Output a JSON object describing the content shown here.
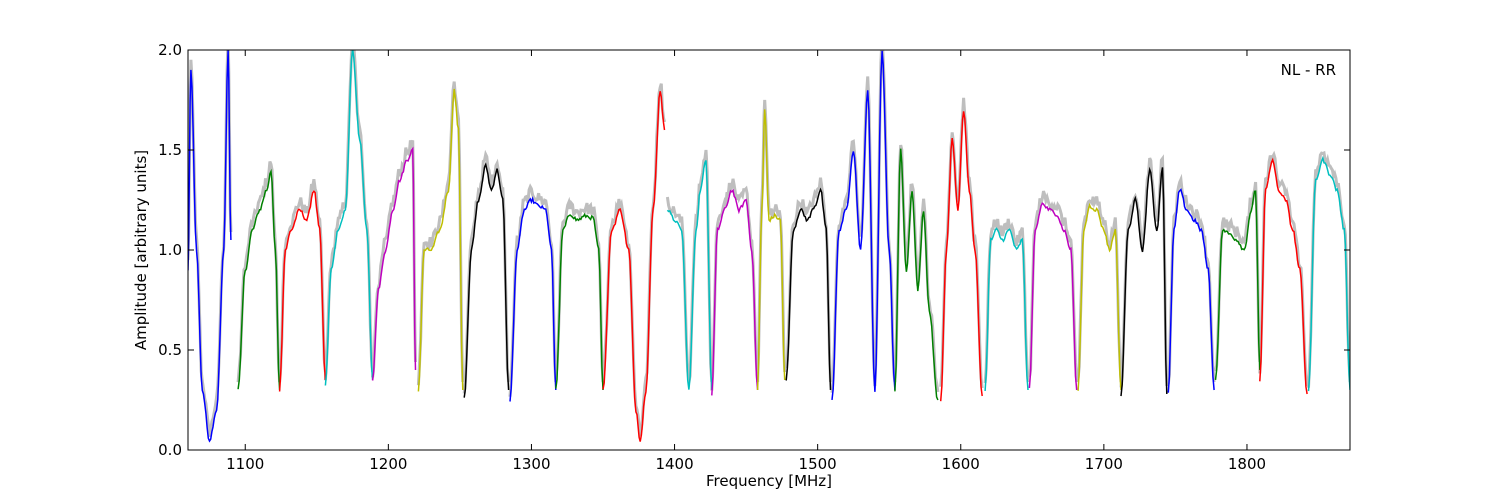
{
  "chart_data": {
    "type": "line",
    "title": "",
    "xlabel": "Frequency [MHz]",
    "ylabel": "Amplitude [arbitrary units]",
    "xlim": [
      1060,
      1872
    ],
    "ylim": [
      0.0,
      2.0
    ],
    "xticks": [
      1100,
      1200,
      1300,
      1400,
      1500,
      1600,
      1700,
      1800
    ],
    "yticks": [
      0.0,
      0.5,
      1.0,
      1.5,
      2.0
    ],
    "xtick_labels": [
      "1100",
      "1200",
      "1300",
      "1400",
      "1500",
      "1600",
      "1700",
      "1800"
    ],
    "ytick_labels": [
      "0.0",
      "0.5",
      "1.0",
      "1.5",
      "2.0"
    ],
    "annotation": "NL - RR",
    "grid": false,
    "background_color": "#bebebe",
    "series": [
      {
        "color": "#0000ff",
        "x": [
          1060,
          1062,
          1066,
          1070,
          1075,
          1080,
          1085,
          1088,
          1090
        ],
        "y": [
          0.9,
          1.9,
          1.0,
          0.3,
          0.05,
          0.2,
          1.0,
          2.0,
          1.05
        ]
      },
      {
        "color": "#008000",
        "x": [
          1095,
          1100,
          1105,
          1110,
          1115,
          1118,
          1121,
          1124
        ],
        "y": [
          0.3,
          0.9,
          1.1,
          1.2,
          1.3,
          1.4,
          1.0,
          0.3
        ]
      },
      {
        "color": "#ff0000",
        "x": [
          1124,
          1128,
          1132,
          1138,
          1143,
          1148,
          1152,
          1156
        ],
        "y": [
          0.3,
          1.0,
          1.1,
          1.2,
          1.15,
          1.3,
          1.1,
          0.35
        ]
      },
      {
        "color": "#00bfbf",
        "x": [
          1156,
          1160,
          1165,
          1170,
          1175,
          1180,
          1185,
          1189
        ],
        "y": [
          0.32,
          0.9,
          1.1,
          1.2,
          2.0,
          1.55,
          1.1,
          0.35
        ]
      },
      {
        "color": "#bf00bf",
        "x": [
          1189,
          1193,
          1198,
          1203,
          1208,
          1213,
          1217,
          1219
        ],
        "y": [
          0.35,
          0.8,
          1.0,
          1.2,
          1.35,
          1.45,
          1.5,
          0.4
        ]
      },
      {
        "color": "#bfbf00",
        "x": [
          1221,
          1225,
          1230,
          1236,
          1242,
          1246,
          1249,
          1252
        ],
        "y": [
          0.3,
          1.0,
          1.0,
          1.1,
          1.3,
          1.8,
          1.6,
          0.3
        ]
      },
      {
        "color": "#000000",
        "x": [
          1253,
          1258,
          1263,
          1268,
          1272,
          1276,
          1280,
          1284
        ],
        "y": [
          0.26,
          1.0,
          1.25,
          1.42,
          1.3,
          1.4,
          1.25,
          0.3
        ]
      },
      {
        "color": "#0000ff",
        "x": [
          1285,
          1290,
          1295,
          1300,
          1305,
          1310,
          1314,
          1317
        ],
        "y": [
          0.25,
          1.0,
          1.2,
          1.25,
          1.22,
          1.2,
          1.0,
          0.3
        ]
      },
      {
        "color": "#008000",
        "x": [
          1317,
          1322,
          1327,
          1332,
          1338,
          1343,
          1347,
          1350
        ],
        "y": [
          0.3,
          1.1,
          1.18,
          1.15,
          1.17,
          1.16,
          1.0,
          0.3
        ]
      },
      {
        "color": "#ff0000",
        "x": [
          1350,
          1356,
          1362,
          1368,
          1373,
          1376,
          1380,
          1385,
          1390,
          1393
        ],
        "y": [
          0.3,
          1.1,
          1.2,
          1.0,
          0.2,
          0.05,
          0.3,
          1.2,
          1.8,
          1.6
        ]
      },
      {
        "color": "#00bfbf",
        "x": [
          1395,
          1400,
          1405,
          1410,
          1415,
          1418,
          1422,
          1426
        ],
        "y": [
          1.2,
          1.15,
          1.1,
          0.3,
          1.1,
          1.3,
          1.45,
          0.3
        ]
      },
      {
        "color": "#bf00bf",
        "x": [
          1426,
          1430,
          1435,
          1440,
          1445,
          1450,
          1454,
          1458
        ],
        "y": [
          0.28,
          1.1,
          1.2,
          1.3,
          1.2,
          1.25,
          1.0,
          0.3
        ]
      },
      {
        "color": "#bfbf00",
        "x": [
          1458,
          1461,
          1463,
          1466,
          1470,
          1474,
          1477
        ],
        "y": [
          0.3,
          1.2,
          1.7,
          1.15,
          1.17,
          1.15,
          0.35
        ]
      },
      {
        "color": "#000000",
        "x": [
          1478,
          1483,
          1488,
          1493,
          1498,
          1502,
          1506,
          1509
        ],
        "y": [
          0.35,
          1.1,
          1.2,
          1.15,
          1.22,
          1.3,
          1.1,
          0.3
        ]
      },
      {
        "color": "#0000ff",
        "x": [
          1510,
          1515,
          1520,
          1525,
          1530,
          1535,
          1540,
          1545,
          1550,
          1554
        ],
        "y": [
          0.25,
          1.1,
          1.2,
          1.5,
          1.0,
          1.8,
          0.3,
          2.0,
          1.0,
          0.3
        ]
      },
      {
        "color": "#008000",
        "x": [
          1554,
          1558,
          1562,
          1566,
          1570,
          1574,
          1578,
          1584
        ],
        "y": [
          0.3,
          1.5,
          0.9,
          1.3,
          0.8,
          1.2,
          0.7,
          0.25
        ]
      },
      {
        "color": "#ff0000",
        "x": [
          1586,
          1590,
          1594,
          1598,
          1602,
          1606,
          1610,
          1615
        ],
        "y": [
          0.25,
          1.0,
          1.55,
          1.2,
          1.7,
          1.3,
          1.0,
          0.27
        ]
      },
      {
        "color": "#00bfbf",
        "x": [
          1617,
          1621,
          1625,
          1629,
          1634,
          1639,
          1643,
          1647
        ],
        "y": [
          0.3,
          1.05,
          1.1,
          1.05,
          1.1,
          1.0,
          1.05,
          0.3
        ]
      },
      {
        "color": "#bf00bf",
        "x": [
          1648,
          1652,
          1657,
          1662,
          1667,
          1672,
          1677,
          1681
        ],
        "y": [
          0.3,
          1.1,
          1.23,
          1.2,
          1.18,
          1.1,
          1.0,
          0.3
        ]
      },
      {
        "color": "#bfbf00",
        "x": [
          1682,
          1686,
          1690,
          1695,
          1700,
          1704,
          1708,
          1712
        ],
        "y": [
          0.3,
          1.1,
          1.22,
          1.2,
          1.1,
          1.0,
          1.1,
          0.3
        ]
      },
      {
        "color": "#000000",
        "x": [
          1712,
          1717,
          1722,
          1727,
          1732,
          1737,
          1741,
          1744
        ],
        "y": [
          0.27,
          1.1,
          1.25,
          1.0,
          1.4,
          1.1,
          1.42,
          0.28
        ]
      },
      {
        "color": "#0000ff",
        "x": [
          1745,
          1749,
          1753,
          1758,
          1763,
          1768,
          1773,
          1777
        ],
        "y": [
          0.28,
          1.1,
          1.3,
          1.2,
          1.15,
          1.1,
          0.9,
          0.3
        ]
      },
      {
        "color": "#008000",
        "x": [
          1778,
          1783,
          1788,
          1793,
          1798,
          1803,
          1806,
          1809
        ],
        "y": [
          0.35,
          1.1,
          1.08,
          1.05,
          1.0,
          1.2,
          1.3,
          0.4
        ]
      },
      {
        "color": "#ff0000",
        "x": [
          1809,
          1813,
          1818,
          1822,
          1827,
          1832,
          1837,
          1842
        ],
        "y": [
          0.35,
          1.3,
          1.45,
          1.3,
          1.25,
          1.1,
          0.9,
          0.28
        ]
      },
      {
        "color": "#00bfbf",
        "x": [
          1843,
          1848,
          1853,
          1858,
          1863,
          1868,
          1872
        ],
        "y": [
          0.3,
          1.35,
          1.45,
          1.38,
          1.3,
          1.1,
          0.3
        ]
      }
    ]
  }
}
